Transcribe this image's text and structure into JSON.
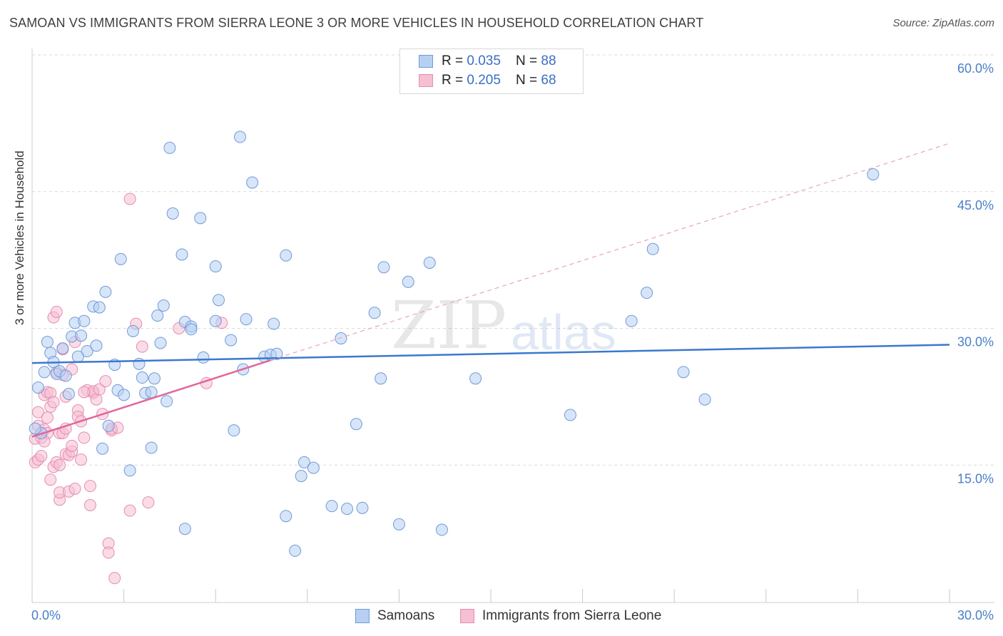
{
  "title": "SAMOAN VS IMMIGRANTS FROM SIERRA LEONE 3 OR MORE VEHICLES IN HOUSEHOLD CORRELATION CHART",
  "source": "Source: ZipAtlas.com",
  "watermark": {
    "zip": "ZIP",
    "atlas": "atlas"
  },
  "colors": {
    "blue": "#3b78d0",
    "blue_fill": "#b7d0f2",
    "pink": "#e0679a",
    "pink_fill": "#f6bfd3",
    "grid": "#d9d9d9",
    "axis_text": "#4a7fc9"
  },
  "legend": {
    "rows": [
      {
        "r_label": "R = ",
        "r_value": "0.035",
        "n_label": "N = ",
        "n_value": "88"
      },
      {
        "r_label": "R = ",
        "r_value": "0.205",
        "n_label": "N = ",
        "n_value": "68"
      }
    ]
  },
  "bottom_legend": [
    "Samoans",
    "Immigrants from Sierra Leone"
  ],
  "chart_data": {
    "type": "scatter",
    "title": "SAMOAN VS IMMIGRANTS FROM SIERRA LEONE 3 OR MORE VEHICLES IN HOUSEHOLD CORRELATION CHART",
    "xlabel": "",
    "ylabel": "3 or more Vehicles in Household",
    "xlim": [
      0,
      30
    ],
    "ylim": [
      0,
      60
    ],
    "x_tick_labels": [
      "0.0%",
      "30.0%"
    ],
    "y_ticks": [
      15,
      30,
      45,
      60
    ],
    "y_tick_labels": [
      "15.0%",
      "30.0%",
      "45.0%",
      "60.0%"
    ],
    "grid": true,
    "series": [
      {
        "name": "Samoans",
        "R": 0.035,
        "N": 88,
        "trend": {
          "x": [
            0,
            30
          ],
          "y": [
            26.2,
            28.2
          ],
          "style": "solid"
        },
        "points": [
          [
            0.2,
            23.5
          ],
          [
            0.3,
            18.5
          ],
          [
            0.4,
            25.2
          ],
          [
            0.5,
            28.5
          ],
          [
            0.6,
            27.3
          ],
          [
            0.7,
            26.3
          ],
          [
            0.8,
            25.0
          ],
          [
            0.9,
            25.3
          ],
          [
            1.0,
            27.8
          ],
          [
            1.1,
            24.8
          ],
          [
            1.2,
            22.8
          ],
          [
            1.3,
            29.1
          ],
          [
            1.4,
            30.6
          ],
          [
            1.6,
            29.2
          ],
          [
            1.7,
            30.8
          ],
          [
            1.8,
            27.5
          ],
          [
            2.0,
            32.4
          ],
          [
            2.1,
            28.1
          ],
          [
            2.2,
            32.3
          ],
          [
            2.4,
            34.0
          ],
          [
            2.5,
            19.3
          ],
          [
            2.7,
            26.0
          ],
          [
            2.8,
            23.2
          ],
          [
            2.9,
            37.6
          ],
          [
            3.0,
            22.7
          ],
          [
            3.2,
            14.4
          ],
          [
            3.3,
            29.7
          ],
          [
            3.5,
            26.1
          ],
          [
            3.6,
            24.6
          ],
          [
            3.7,
            22.9
          ],
          [
            3.9,
            23.0
          ],
          [
            3.9,
            16.9
          ],
          [
            4.0,
            24.5
          ],
          [
            4.1,
            31.4
          ],
          [
            4.2,
            28.4
          ],
          [
            4.3,
            32.5
          ],
          [
            4.4,
            22.0
          ],
          [
            4.5,
            49.8
          ],
          [
            4.6,
            42.6
          ],
          [
            4.9,
            38.1
          ],
          [
            5.0,
            8.0
          ],
          [
            5.0,
            30.7
          ],
          [
            5.2,
            30.2
          ],
          [
            5.2,
            29.9
          ],
          [
            5.5,
            42.1
          ],
          [
            5.6,
            26.8
          ],
          [
            6.0,
            30.8
          ],
          [
            6.0,
            36.8
          ],
          [
            6.1,
            33.1
          ],
          [
            6.5,
            28.7
          ],
          [
            6.6,
            18.8
          ],
          [
            6.8,
            51.0
          ],
          [
            6.9,
            25.5
          ],
          [
            7.0,
            31.0
          ],
          [
            7.2,
            46.0
          ],
          [
            7.6,
            26.9
          ],
          [
            7.8,
            27.1
          ],
          [
            7.9,
            30.5
          ],
          [
            8.0,
            27.2
          ],
          [
            8.3,
            38.0
          ],
          [
            8.3,
            9.4
          ],
          [
            8.6,
            5.6
          ],
          [
            8.8,
            13.8
          ],
          [
            8.9,
            15.3
          ],
          [
            9.2,
            14.7
          ],
          [
            9.8,
            10.5
          ],
          [
            10.1,
            28.9
          ],
          [
            10.3,
            10.2
          ],
          [
            10.6,
            19.5
          ],
          [
            10.8,
            10.3
          ],
          [
            11.2,
            31.7
          ],
          [
            11.4,
            24.5
          ],
          [
            11.5,
            36.7
          ],
          [
            12.0,
            8.5
          ],
          [
            12.3,
            35.1
          ],
          [
            13.0,
            37.2
          ],
          [
            13.4,
            7.9
          ],
          [
            14.5,
            24.5
          ],
          [
            17.6,
            20.5
          ],
          [
            19.6,
            30.8
          ],
          [
            20.1,
            33.9
          ],
          [
            20.3,
            38.7
          ],
          [
            21.3,
            25.2
          ],
          [
            22.0,
            22.2
          ],
          [
            27.5,
            46.9
          ],
          [
            0.1,
            19.0
          ],
          [
            1.5,
            26.9
          ],
          [
            2.3,
            16.8
          ]
        ]
      },
      {
        "name": "Immigrants from Sierra Leone",
        "R": 0.205,
        "N": 68,
        "trend": {
          "x": [
            0,
            7.8
          ],
          "y": [
            18.1,
            26.5
          ],
          "style": "solid",
          "extended": {
            "x": [
              7.8,
              30
            ],
            "y": [
              26.5,
              50.3
            ],
            "style": "dashed"
          }
        },
        "points": [
          [
            0.1,
            15.3
          ],
          [
            0.1,
            17.9
          ],
          [
            0.2,
            19.3
          ],
          [
            0.2,
            20.8
          ],
          [
            0.2,
            15.6
          ],
          [
            0.3,
            18.0
          ],
          [
            0.3,
            16.0
          ],
          [
            0.4,
            18.9
          ],
          [
            0.4,
            22.7
          ],
          [
            0.5,
            20.2
          ],
          [
            0.5,
            18.5
          ],
          [
            0.5,
            23.0
          ],
          [
            0.6,
            22.9
          ],
          [
            0.6,
            13.4
          ],
          [
            0.6,
            21.4
          ],
          [
            0.7,
            31.2
          ],
          [
            0.7,
            14.8
          ],
          [
            0.7,
            21.9
          ],
          [
            0.8,
            31.8
          ],
          [
            0.8,
            25.2
          ],
          [
            0.8,
            15.3
          ],
          [
            0.9,
            11.2
          ],
          [
            0.9,
            12.0
          ],
          [
            0.9,
            18.5
          ],
          [
            1.0,
            24.9
          ],
          [
            1.0,
            27.7
          ],
          [
            1.0,
            18.5
          ],
          [
            1.1,
            19.0
          ],
          [
            1.1,
            22.5
          ],
          [
            1.1,
            16.2
          ],
          [
            1.2,
            16.1
          ],
          [
            1.2,
            12.1
          ],
          [
            1.3,
            16.5
          ],
          [
            1.3,
            17.1
          ],
          [
            1.3,
            25.5
          ],
          [
            1.4,
            28.5
          ],
          [
            1.4,
            12.4
          ],
          [
            1.5,
            21.0
          ],
          [
            1.5,
            20.3
          ],
          [
            1.6,
            15.6
          ],
          [
            1.6,
            19.8
          ],
          [
            1.7,
            18.0
          ],
          [
            1.8,
            23.2
          ],
          [
            1.9,
            10.6
          ],
          [
            2.0,
            22.9
          ],
          [
            2.0,
            23.1
          ],
          [
            2.1,
            22.2
          ],
          [
            2.2,
            23.3
          ],
          [
            2.3,
            20.6
          ],
          [
            2.4,
            24.2
          ],
          [
            2.5,
            6.4
          ],
          [
            2.5,
            5.4
          ],
          [
            2.6,
            18.8
          ],
          [
            2.6,
            19.0
          ],
          [
            2.7,
            2.6
          ],
          [
            3.2,
            10.0
          ],
          [
            3.2,
            44.2
          ],
          [
            3.4,
            30.5
          ],
          [
            3.6,
            28.0
          ],
          [
            3.8,
            10.9
          ],
          [
            4.8,
            30.0
          ],
          [
            5.7,
            24.0
          ],
          [
            6.2,
            30.6
          ],
          [
            0.4,
            17.6
          ],
          [
            0.9,
            15.0
          ],
          [
            1.7,
            23.0
          ],
          [
            2.8,
            19.1
          ],
          [
            1.9,
            12.7
          ]
        ]
      }
    ]
  }
}
